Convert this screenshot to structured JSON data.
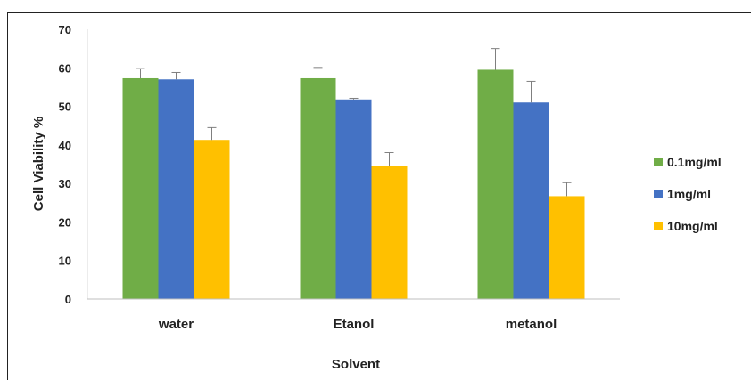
{
  "chart_data": {
    "type": "bar",
    "title": "",
    "xlabel": "Solvent",
    "ylabel": "Cell Viability %",
    "categories": [
      "water",
      "Etanol",
      "metanol"
    ],
    "ylim": [
      0,
      70
    ],
    "yticks": [
      0,
      10,
      20,
      30,
      40,
      50,
      60,
      70
    ],
    "grid": false,
    "legend_position": "right",
    "series": [
      {
        "name": "0.1mg/ml",
        "color": "#70AD47",
        "values": [
          57.3,
          57.3,
          59.5
        ],
        "errors": [
          2.5,
          2.8,
          5.5
        ]
      },
      {
        "name": "1mg/ml",
        "color": "#4472C4",
        "values": [
          57.0,
          51.8,
          51.0
        ],
        "errors": [
          1.8,
          0.3,
          5.5
        ]
      },
      {
        "name": "10mg/ml",
        "color": "#FFC000",
        "values": [
          41.3,
          34.6,
          26.7
        ],
        "errors": [
          3.2,
          3.4,
          3.5
        ]
      }
    ]
  }
}
